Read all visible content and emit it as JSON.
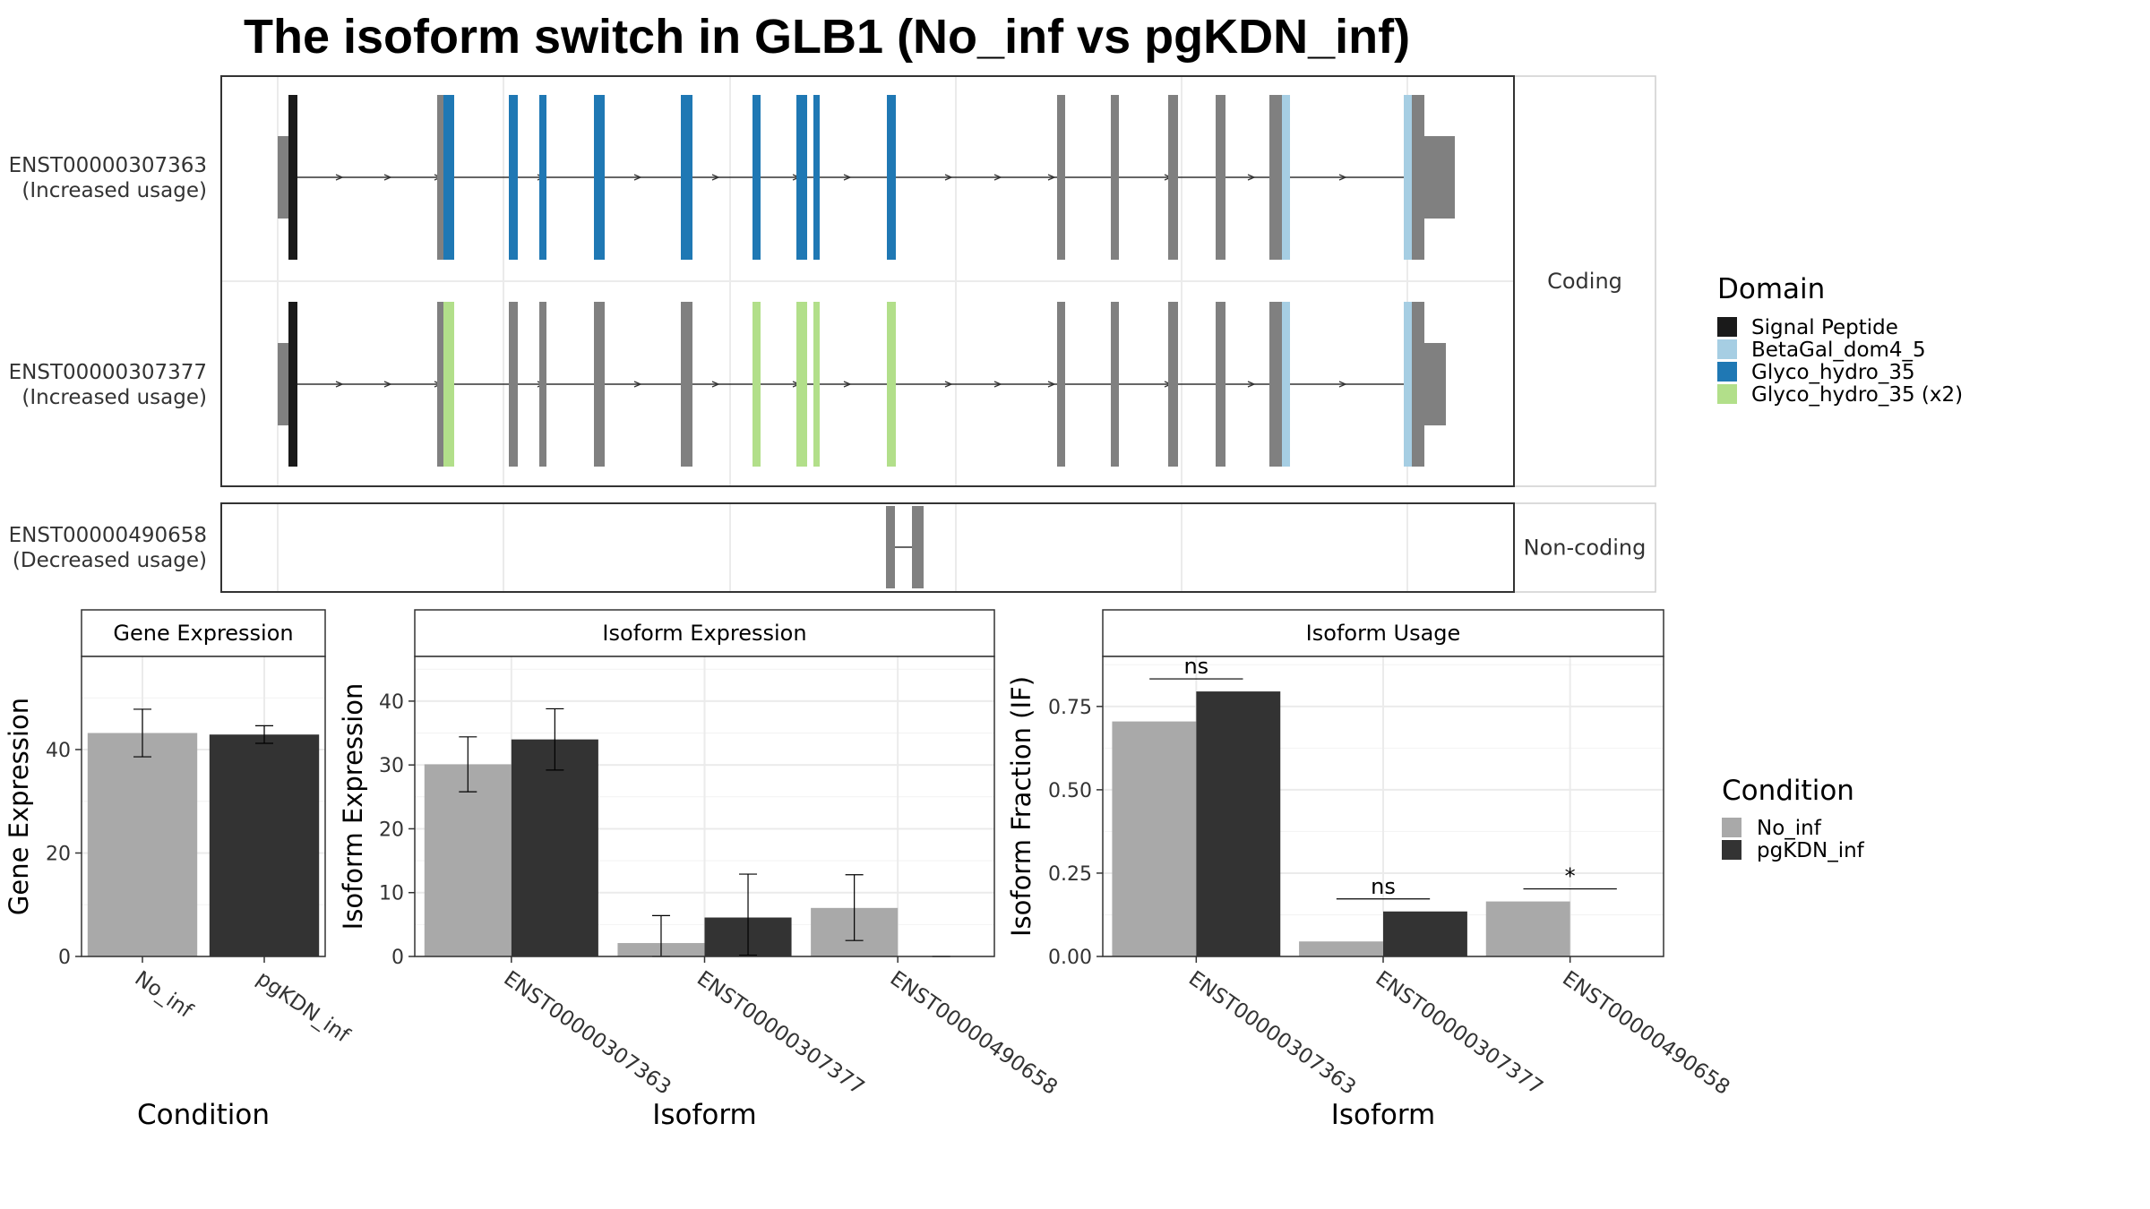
{
  "title": "The isoform switch in GLB1 (No_inf vs pgKDN_inf)",
  "colors": {
    "signal_peptide": "#1a1a1a",
    "betagal": "#a6cee3",
    "glyco": "#1f78b4",
    "glyco_x2": "#b2df8a",
    "exon": "#808080",
    "no_inf": "#a9a9a9",
    "pgkdn_inf": "#333333"
  },
  "structure": {
    "facets": [
      "Coding",
      "Non-coding"
    ],
    "isoforms": [
      {
        "id": "ENST00000307363",
        "usage": "(Increased usage)",
        "facet": "Coding",
        "alt_domain": "glyco"
      },
      {
        "id": "ENST00000307377",
        "usage": "(Increased usage)",
        "facet": "Coding",
        "alt_domain": "glyco_x2"
      },
      {
        "id": "ENST00000490658",
        "usage": "(Decreased usage)",
        "facet": "Non-coding"
      }
    ]
  },
  "legend_domain": {
    "title": "Domain",
    "items": [
      {
        "label": "Signal Peptide",
        "color": "#1a1a1a"
      },
      {
        "label": "BetaGal_dom4_5",
        "color": "#a6cee3"
      },
      {
        "label": "Glyco_hydro_35",
        "color": "#1f78b4"
      },
      {
        "label": "Glyco_hydro_35 (x2)",
        "color": "#b2df8a"
      }
    ]
  },
  "legend_condition": {
    "title": "Condition",
    "items": [
      {
        "label": "No_inf",
        "color": "#a9a9a9"
      },
      {
        "label": "pgKDN_inf",
        "color": "#333333"
      }
    ]
  },
  "chart_data": [
    {
      "type": "bar",
      "title": "Gene Expression",
      "xlabel": "Condition",
      "ylabel": "Gene Expression",
      "categories": [
        "No_inf",
        "pgKDN_inf"
      ],
      "values": [
        43.2,
        42.9
      ],
      "error": [
        [
          38.6,
          47.8
        ],
        [
          41.2,
          44.6
        ]
      ],
      "ylim": [
        0,
        58
      ],
      "yticks": [
        0,
        20,
        40
      ]
    },
    {
      "type": "bar",
      "title": "Isoform Expression",
      "xlabel": "Isoform",
      "ylabel": "Isoform Expression",
      "categories": [
        "ENST00000307363",
        "ENST00000307377",
        "ENST00000490658"
      ],
      "series": [
        {
          "name": "No_inf",
          "values": [
            30.1,
            2.1,
            7.6
          ],
          "error": [
            [
              25.8,
              34.4
            ],
            [
              0,
              6.4
            ],
            [
              2.5,
              12.8
            ]
          ]
        },
        {
          "name": "pgKDN_inf",
          "values": [
            34.0,
            6.1,
            0.0
          ],
          "error": [
            [
              29.2,
              38.8
            ],
            [
              0.2,
              12.9
            ],
            [
              0,
              0
            ]
          ]
        }
      ],
      "ylim": [
        0,
        47
      ],
      "yticks": [
        0,
        10,
        20,
        30,
        40
      ]
    },
    {
      "type": "bar",
      "title": "Isoform Usage",
      "xlabel": "Isoform",
      "ylabel": "Isoform Fraction (IF)",
      "categories": [
        "ENST00000307363",
        "ENST00000307377",
        "ENST00000490658"
      ],
      "series": [
        {
          "name": "No_inf",
          "values": [
            0.705,
            0.045,
            0.165
          ]
        },
        {
          "name": "pgKDN_inf",
          "values": [
            0.795,
            0.135,
            0.0
          ]
        }
      ],
      "significance": [
        "ns",
        "ns",
        "*"
      ],
      "ylim": [
        0,
        0.9
      ],
      "yticks": [
        "0.00",
        "0.25",
        "0.50",
        "0.75"
      ]
    }
  ]
}
